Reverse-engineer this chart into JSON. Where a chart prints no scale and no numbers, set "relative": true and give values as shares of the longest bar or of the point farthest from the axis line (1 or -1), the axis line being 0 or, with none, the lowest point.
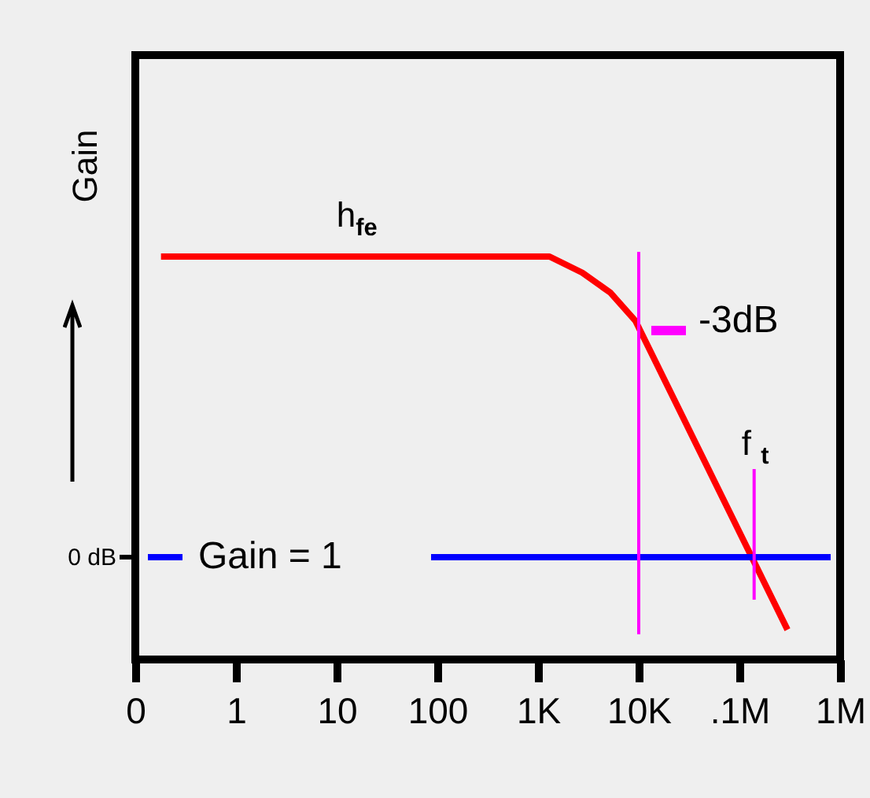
{
  "chart_data": {
    "type": "line",
    "relative": true,
    "ylabel": "Gain",
    "log": "x",
    "xlim": [
      0.1,
      1000000
    ],
    "xticks": [
      {
        "value": 0.1,
        "label": "0"
      },
      1,
      10,
      100,
      {
        "value": 1000,
        "label": "1K"
      },
      {
        "value": 10000,
        "label": "10K"
      },
      {
        "value": 100000,
        "label": ".1M"
      },
      {
        "value": 1000000,
        "label": "1M"
      }
    ],
    "series": [
      {
        "name": "h$_{fe}$",
        "color": "#ff0000",
        "x": [
          0.18,
          1300,
          2750,
          5250,
          9300,
          300000
        ],
        "values": [
          1,
          1,
          0.96,
          0.91,
          0.84,
          0.074
        ]
      }
    ],
    "ref_lines": [
      {
        "axis": "y",
        "value": 0.254,
        "color": "#0000ff"
      },
      {
        "axis": "x",
        "value": 10000,
        "color": "#ff00ff"
      },
      {
        "axis": "x",
        "value": 140000,
        "color": "#ff00ff"
      }
    ],
    "annotations": [
      "0 dB",
      "Gain = 1",
      {
        "text": "-3dB",
        "x": 10000,
        "y": 0.84
      },
      {
        "text": "f$_{t}$",
        "x": 140000,
        "y": 0.254
      }
    ],
    "grid": false,
    "marker": "none",
    "line_style": "solid"
  }
}
